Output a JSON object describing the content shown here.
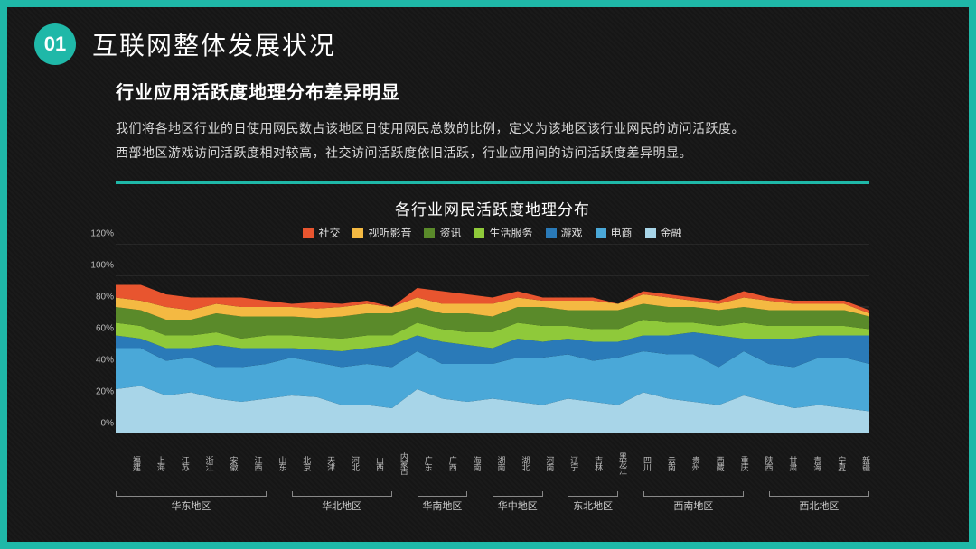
{
  "header": {
    "badge": "01",
    "section_title": "互联网整体发展状况"
  },
  "subtitle": "行业应用活跃度地理分布差异明显",
  "desc_line1": "我们将各地区行业的日使用网民数占该地区日使用网民总数的比例，定义为该地区该行业网民的访问活跃度。",
  "desc_line2": "西部地区游戏访问活跃度相对较高，社交访问活跃度依旧活跃，行业应用间的访问活跃度差异明显。",
  "chart": {
    "type": "stacked-area",
    "title": "各行业网民活跃度地理分布",
    "background_color": "transparent",
    "grid_color": "#5a5a5a",
    "title_fontsize": 17,
    "label_fontsize": 10,
    "ylim": [
      0,
      120
    ],
    "ytick_step": 20,
    "y_ticks": [
      "0%",
      "20%",
      "40%",
      "60%",
      "80%",
      "100%",
      "120%"
    ],
    "categories": [
      "福建",
      "上海",
      "江苏",
      "浙江",
      "安徽",
      "江西",
      "山东",
      "北京",
      "天津",
      "河北",
      "山西",
      "内蒙古",
      "广东",
      "广西",
      "海南",
      "湖南",
      "湖北",
      "河南",
      "辽宁",
      "吉林",
      "黑龙江",
      "四川",
      "云南",
      "贵州",
      "西藏",
      "重庆",
      "陕西",
      "甘肃",
      "青海",
      "宁夏",
      "新疆"
    ],
    "regions": [
      {
        "label": "华东地区",
        "start": 0,
        "end": 6
      },
      {
        "label": "华北地区",
        "start": 7,
        "end": 11
      },
      {
        "label": "华南地区",
        "start": 12,
        "end": 14
      },
      {
        "label": "华中地区",
        "start": 15,
        "end": 17
      },
      {
        "label": "东北地区",
        "start": 18,
        "end": 20
      },
      {
        "label": "西南地区",
        "start": 21,
        "end": 25
      },
      {
        "label": "西北地区",
        "start": 26,
        "end": 30
      }
    ],
    "series": [
      {
        "name": "金融",
        "color": "#a8d5e8",
        "values": [
          28,
          30,
          24,
          26,
          22,
          20,
          22,
          24,
          23,
          18,
          18,
          16,
          28,
          22,
          20,
          22,
          20,
          18,
          22,
          20,
          18,
          26,
          22,
          20,
          18,
          24,
          20,
          16,
          18,
          16,
          14
        ]
      },
      {
        "name": "电商",
        "color": "#4aa8d8",
        "values": [
          26,
          24,
          22,
          22,
          20,
          22,
          22,
          24,
          22,
          24,
          26,
          26,
          24,
          22,
          24,
          22,
          28,
          30,
          28,
          26,
          30,
          26,
          28,
          30,
          24,
          28,
          24,
          26,
          30,
          32,
          30
        ]
      },
      {
        "name": "游戏",
        "color": "#2a7ab8",
        "values": [
          8,
          6,
          8,
          6,
          14,
          12,
          10,
          6,
          8,
          10,
          10,
          14,
          10,
          14,
          12,
          10,
          12,
          10,
          10,
          12,
          10,
          10,
          12,
          14,
          20,
          8,
          16,
          18,
          14,
          14,
          18
        ]
      },
      {
        "name": "生活服务",
        "color": "#8fc93a",
        "values": [
          8,
          8,
          8,
          8,
          8,
          6,
          8,
          8,
          8,
          8,
          8,
          6,
          8,
          8,
          8,
          10,
          10,
          10,
          8,
          8,
          8,
          10,
          8,
          6,
          6,
          10,
          8,
          8,
          6,
          6,
          4
        ]
      },
      {
        "name": "资讯",
        "color": "#5a8a2a",
        "values": [
          10,
          10,
          10,
          10,
          12,
          14,
          12,
          12,
          12,
          14,
          14,
          14,
          10,
          10,
          12,
          10,
          10,
          12,
          10,
          12,
          12,
          10,
          10,
          10,
          10,
          10,
          10,
          10,
          10,
          10,
          8
        ]
      },
      {
        "name": "视听影音",
        "color": "#f4b942",
        "values": [
          6,
          6,
          8,
          6,
          6,
          6,
          6,
          6,
          6,
          6,
          6,
          4,
          6,
          6,
          6,
          8,
          6,
          4,
          6,
          6,
          4,
          6,
          6,
          4,
          4,
          6,
          6,
          4,
          4,
          4,
          2
        ]
      },
      {
        "name": "社交",
        "color": "#e8552f",
        "values": [
          8,
          10,
          8,
          8,
          4,
          6,
          4,
          2,
          4,
          2,
          2,
          0,
          6,
          8,
          6,
          4,
          4,
          2,
          2,
          2,
          0,
          2,
          2,
          2,
          2,
          4,
          2,
          2,
          2,
          2,
          2
        ]
      }
    ],
    "legend_order": [
      "社交",
      "视听影音",
      "资讯",
      "生活服务",
      "游戏",
      "电商",
      "金融"
    ]
  }
}
